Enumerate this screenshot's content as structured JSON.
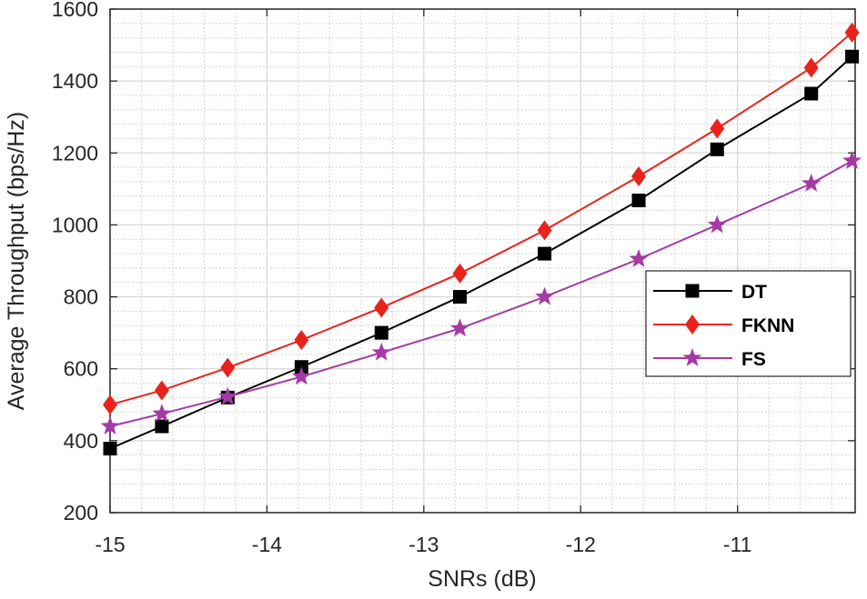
{
  "chart_data": {
    "type": "line",
    "title": "",
    "xlabel": "SNRs (dB)",
    "ylabel": "Average Throughput (bps/Hz)",
    "xlim": [
      -15,
      -10.25
    ],
    "ylim": [
      200,
      1600
    ],
    "grid": true,
    "minor_grid": true,
    "xticks": [
      -15,
      -14,
      -13,
      -12,
      -11
    ],
    "xtick_labels": [
      "-15",
      "-14",
      "-13",
      "-12",
      "-11"
    ],
    "yticks": [
      200,
      400,
      600,
      800,
      1000,
      1200,
      1400,
      1600
    ],
    "ytick_labels": [
      "200",
      "400",
      "600",
      "800",
      "1000",
      "1200",
      "1400",
      "1600"
    ],
    "legend_position": "center-right",
    "x": [
      -15,
      -14.67,
      -14.25,
      -13.78,
      -13.27,
      -12.77,
      -12.23,
      -11.63,
      -11.13,
      -10.53,
      -10.27
    ],
    "series": [
      {
        "name": "DT",
        "color": "#000000",
        "marker": "square",
        "values": [
          378,
          440,
          520,
          605,
          700,
          800,
          920,
          1068,
          1210,
          1365,
          1468
        ]
      },
      {
        "name": "FKNN",
        "color": "#e8231c",
        "marker": "diamond",
        "values": [
          500,
          540,
          603,
          680,
          770,
          865,
          985,
          1135,
          1268,
          1437,
          1535
        ]
      },
      {
        "name": "FS",
        "color": "#a43ba3",
        "marker": "star",
        "values": [
          440,
          475,
          522,
          578,
          645,
          712,
          800,
          905,
          1000,
          1115,
          1178
        ]
      }
    ]
  }
}
